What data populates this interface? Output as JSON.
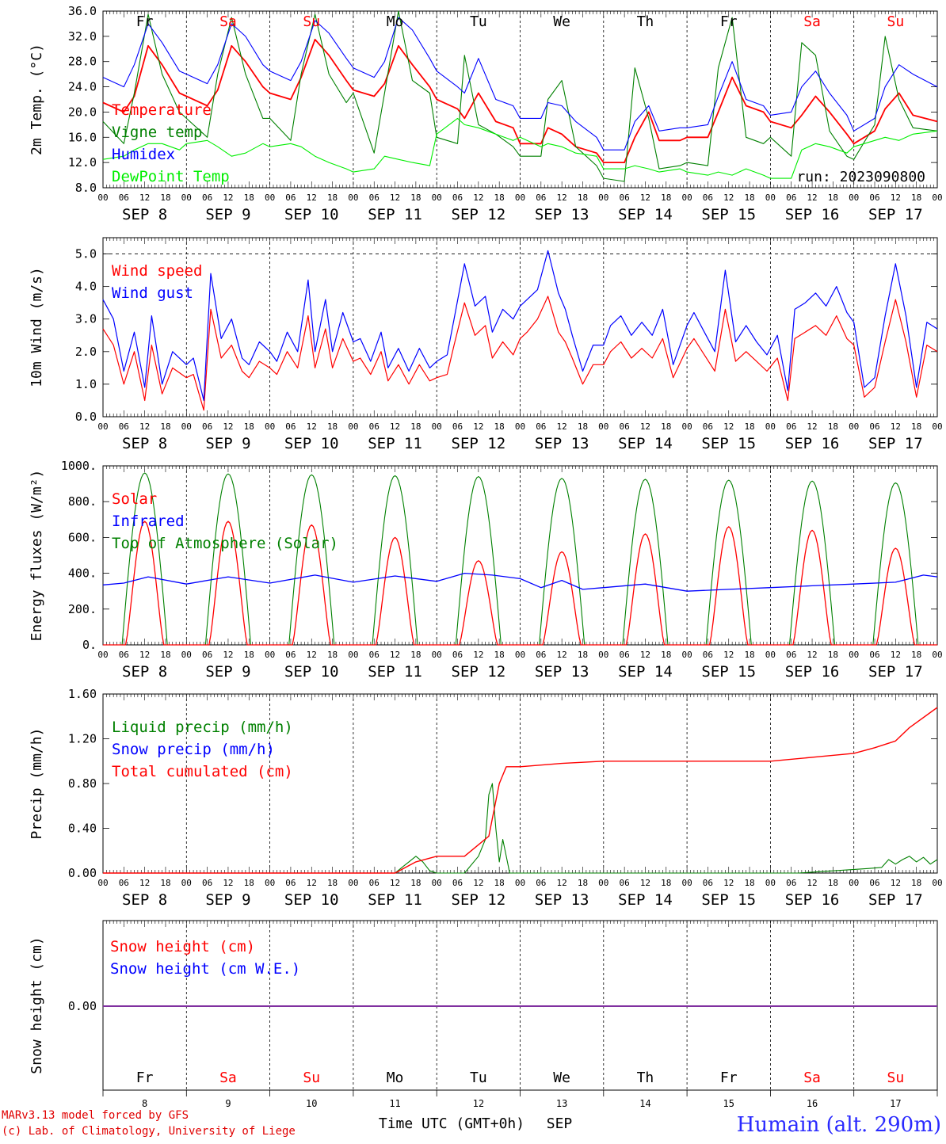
{
  "chart_data": [
    {
      "type": "line",
      "ylabel": "2m Temp. (°C)",
      "ylim": [
        8,
        36
      ],
      "yticks": [
        "8.0",
        "12.0",
        "16.0",
        "20.0",
        "24.0",
        "28.0",
        "32.0",
        "36.0"
      ],
      "run_label": "run: 2023090800",
      "x_hours": [
        0,
        6,
        9,
        13,
        17,
        22,
        24,
        30,
        33,
        37,
        41,
        46,
        48,
        54,
        57,
        61,
        65,
        70,
        72,
        78,
        81,
        85,
        89,
        94,
        96,
        102,
        104,
        108,
        113,
        118,
        120,
        126,
        128,
        132,
        136,
        142,
        144,
        150,
        153,
        157,
        160,
        166,
        168,
        174,
        177,
        181,
        185,
        190,
        192,
        198,
        201,
        205,
        209,
        214,
        216,
        222,
        225,
        229,
        233,
        240
      ],
      "series": [
        {
          "name": "Temperature",
          "color": "#ff0000",
          "values": [
            21.5,
            20.0,
            22.5,
            30.5,
            27.5,
            23.0,
            22.5,
            21.0,
            23.5,
            30.5,
            28.0,
            24.0,
            23.0,
            22.0,
            25.5,
            31.5,
            29.0,
            25.0,
            23.5,
            22.5,
            24.5,
            30.5,
            27.5,
            24.0,
            22.0,
            20.5,
            19.0,
            23.0,
            18.5,
            17.5,
            15.0,
            15.0,
            17.5,
            16.5,
            14.5,
            13.5,
            12.0,
            12.0,
            16.0,
            20.0,
            15.5,
            15.5,
            16.0,
            16.0,
            20.0,
            25.5,
            21.0,
            20.0,
            18.5,
            17.5,
            19.5,
            22.5,
            20.0,
            16.5,
            15.0,
            17.0,
            20.5,
            23.0,
            19.5,
            18.5
          ]
        },
        {
          "name": "Vigne temp",
          "color": "#008000",
          "values": [
            18.5,
            15.0,
            23.0,
            35.5,
            26.0,
            20.0,
            19.0,
            16.0,
            26.0,
            35.0,
            26.0,
            19.0,
            19.0,
            15.5,
            26.0,
            35.5,
            26.0,
            21.5,
            23.0,
            13.5,
            23.0,
            36.0,
            25.0,
            23.0,
            16.0,
            15.0,
            29.0,
            18.0,
            16.5,
            14.5,
            13.0,
            13.0,
            22.0,
            25.0,
            14.5,
            11.5,
            9.5,
            9.0,
            27.0,
            19.0,
            11.0,
            11.5,
            12.0,
            11.5,
            27.0,
            35.0,
            16.0,
            15.0,
            16.0,
            13.0,
            31.0,
            29.0,
            17.0,
            13.0,
            12.5,
            18.0,
            32.0,
            22.0,
            17.5,
            17.0
          ]
        },
        {
          "name": "Humidex",
          "color": "#0000ff",
          "values": [
            25.5,
            24.0,
            27.5,
            34.0,
            31.0,
            26.5,
            26.0,
            24.5,
            27.5,
            34.0,
            32.0,
            27.5,
            26.5,
            25.0,
            28.0,
            34.5,
            32.5,
            28.5,
            27.0,
            25.5,
            28.0,
            35.0,
            33.0,
            28.5,
            26.5,
            24.0,
            23.0,
            28.5,
            22.0,
            21.0,
            19.0,
            19.0,
            21.5,
            21.0,
            18.5,
            16.0,
            14.0,
            14.0,
            18.5,
            21.0,
            17.0,
            17.5,
            17.5,
            18.0,
            22.5,
            28.0,
            22.0,
            21.0,
            19.5,
            20.0,
            24.0,
            26.5,
            23.0,
            19.5,
            17.0,
            19.0,
            24.0,
            27.5,
            26.0,
            24.0
          ]
        },
        {
          "name": "DewPoint Temp",
          "color": "#00ee00",
          "values": [
            12.5,
            13.0,
            14.0,
            15.0,
            15.0,
            14.0,
            15.0,
            15.5,
            14.5,
            13.0,
            13.5,
            15.0,
            14.5,
            15.0,
            14.5,
            13.0,
            12.0,
            11.0,
            10.5,
            11.0,
            13.0,
            12.5,
            12.0,
            11.5,
            16.5,
            19.0,
            18.0,
            17.5,
            16.5,
            15.5,
            16.0,
            14.5,
            15.0,
            14.5,
            13.5,
            13.0,
            11.0,
            11.0,
            11.5,
            11.0,
            10.5,
            11.0,
            10.5,
            10.0,
            10.5,
            10.0,
            11.0,
            10.0,
            9.5,
            9.5,
            14.0,
            15.0,
            14.5,
            13.5,
            14.5,
            15.5,
            16.0,
            15.5,
            16.5,
            17.0
          ]
        }
      ]
    },
    {
      "type": "line",
      "ylabel": "10m Wind (m/s)",
      "ylim": [
        0,
        5.5
      ],
      "yticks": [
        "0.0",
        "1.0",
        "2.0",
        "3.0",
        "4.0",
        "5.0"
      ],
      "x_hours": [
        0,
        3,
        6,
        9,
        12,
        14,
        17,
        20,
        24,
        26,
        29,
        31,
        34,
        37,
        40,
        42,
        45,
        48,
        50,
        53,
        56,
        59,
        61,
        64,
        66,
        69,
        72,
        74,
        77,
        80,
        82,
        85,
        88,
        91,
        94,
        96,
        99,
        101,
        104,
        107,
        110,
        112,
        115,
        118,
        120,
        122,
        125,
        128,
        131,
        133,
        135,
        138,
        141,
        144,
        146,
        149,
        152,
        155,
        158,
        161,
        164,
        168,
        170,
        173,
        176,
        179,
        182,
        185,
        188,
        191,
        194,
        197,
        199,
        202,
        205,
        208,
        211,
        214,
        216,
        219,
        222,
        225,
        228,
        231,
        234,
        237,
        240
      ],
      "series": [
        {
          "name": "Wind speed",
          "color": "#ff0000",
          "values": [
            2.7,
            2.2,
            1.0,
            2.0,
            0.5,
            2.2,
            0.7,
            1.5,
            1.2,
            1.3,
            0.2,
            3.3,
            1.8,
            2.2,
            1.4,
            1.2,
            1.7,
            1.5,
            1.3,
            2.0,
            1.5,
            3.1,
            1.5,
            2.7,
            1.5,
            2.4,
            1.7,
            1.8,
            1.3,
            2.0,
            1.1,
            1.6,
            1.0,
            1.6,
            1.1,
            1.2,
            1.3,
            2.2,
            3.5,
            2.5,
            2.8,
            1.8,
            2.3,
            1.9,
            2.4,
            2.6,
            3.0,
            3.7,
            2.6,
            2.3,
            1.8,
            1.0,
            1.6,
            1.6,
            2.0,
            2.3,
            1.8,
            2.1,
            1.8,
            2.4,
            1.2,
            2.1,
            2.4,
            1.9,
            1.4,
            3.3,
            1.7,
            2.0,
            1.7,
            1.4,
            1.8,
            0.5,
            2.4,
            2.6,
            2.8,
            2.5,
            3.1,
            2.4,
            2.2,
            0.6,
            0.9,
            2.3,
            3.6,
            2.3,
            0.6,
            2.2,
            2.0
          ]
        },
        {
          "name": "Wind gust",
          "color": "#0000ff",
          "values": [
            3.6,
            3.0,
            1.4,
            2.6,
            0.9,
            3.1,
            1.0,
            2.0,
            1.6,
            1.8,
            0.5,
            4.4,
            2.4,
            3.0,
            1.8,
            1.6,
            2.3,
            2.0,
            1.7,
            2.6,
            2.0,
            4.2,
            2.0,
            3.6,
            2.0,
            3.2,
            2.3,
            2.4,
            1.7,
            2.6,
            1.5,
            2.1,
            1.4,
            2.1,
            1.5,
            1.7,
            1.9,
            3.0,
            4.7,
            3.4,
            3.7,
            2.6,
            3.3,
            3.0,
            3.4,
            3.6,
            3.9,
            5.1,
            3.8,
            3.3,
            2.5,
            1.4,
            2.2,
            2.2,
            2.8,
            3.1,
            2.5,
            2.9,
            2.5,
            3.3,
            1.6,
            2.8,
            3.2,
            2.6,
            2.0,
            4.5,
            2.3,
            2.8,
            2.3,
            1.9,
            2.5,
            0.8,
            3.3,
            3.5,
            3.8,
            3.4,
            4.0,
            3.2,
            2.9,
            0.9,
            1.2,
            3.1,
            4.7,
            3.1,
            0.9,
            2.9,
            2.7
          ]
        }
      ]
    },
    {
      "type": "line",
      "ylabel": "Energy fluxes (W/m²)",
      "ylim": [
        0,
        1000
      ],
      "yticks": [
        "0.",
        "200.",
        "400.",
        "600.",
        "800.",
        "1000."
      ],
      "solar_peaks": [
        690,
        690,
        670,
        600,
        470,
        520,
        620,
        660,
        640,
        540
      ],
      "toa_peaks": [
        960,
        955,
        950,
        945,
        940,
        930,
        925,
        920,
        915,
        905
      ],
      "infrared_hours": [
        0,
        6,
        13,
        24,
        36,
        48,
        61,
        72,
        84,
        96,
        104,
        112,
        120,
        126,
        132,
        138,
        144,
        156,
        168,
        180,
        192,
        204,
        216,
        228,
        236,
        240
      ],
      "series": [
        {
          "name": "Solar",
          "color": "#ff0000"
        },
        {
          "name": "Infrared",
          "color": "#0000ff",
          "values": [
            335,
            345,
            380,
            340,
            380,
            345,
            390,
            350,
            385,
            355,
            400,
            390,
            370,
            320,
            360,
            310,
            320,
            340,
            300,
            310,
            320,
            330,
            340,
            350,
            390,
            380
          ]
        },
        {
          "name": "Top of Atmosphere (Solar)",
          "color": "#008000"
        }
      ]
    },
    {
      "type": "line",
      "ylabel": "Precip (mm/h)",
      "ylim": [
        0,
        1.6
      ],
      "yticks": [
        "0.00",
        "0.40",
        "0.80",
        "1.20",
        "1.60"
      ],
      "cumulated_hours": [
        0,
        84,
        90,
        96,
        104,
        111,
        114,
        116,
        120,
        132,
        144,
        156,
        168,
        192,
        206,
        216,
        222,
        228,
        232,
        240
      ],
      "series": [
        {
          "name": "Liquid precip (mm/h)",
          "color": "#008000",
          "hours": [
            0,
            84,
            86,
            88,
            90,
            92,
            94,
            96,
            104,
            108,
            110,
            111,
            112,
            113,
            114,
            115,
            116,
            117,
            118,
            120,
            200,
            210,
            220,
            224,
            226,
            228,
            230,
            232,
            234,
            236,
            238,
            240
          ],
          "values": [
            0,
            0,
            0.05,
            0.1,
            0.15,
            0.1,
            0.02,
            0,
            0,
            0.15,
            0.3,
            0.7,
            0.8,
            0.4,
            0.1,
            0.3,
            0.15,
            0,
            0,
            0,
            0,
            0.02,
            0.04,
            0.05,
            0.12,
            0.08,
            0.12,
            0.15,
            0.1,
            0.14,
            0.08,
            0.12
          ]
        },
        {
          "name": "Snow precip (mm/h)",
          "color": "#0000ff"
        },
        {
          "name": "Total cumulated (cm)",
          "color": "#ff0000",
          "values": [
            0,
            0,
            0.1,
            0.15,
            0.15,
            0.33,
            0.8,
            0.95,
            0.95,
            0.98,
            1.0,
            1.0,
            1.0,
            1.0,
            1.04,
            1.07,
            1.12,
            1.18,
            1.3,
            1.48
          ]
        }
      ]
    },
    {
      "type": "line",
      "ylabel": "Snow height (cm)",
      "ytick": "0.00",
      "series": [
        {
          "name": "Snow height (cm)",
          "color": "#ff0000"
        },
        {
          "name": "Snow height (cm W.E.)",
          "color": "#0000ff"
        }
      ],
      "line_color": "#8030a0"
    }
  ],
  "hour_labels": [
    "00",
    "06",
    "12",
    "18"
  ],
  "dates": [
    "SEP  8",
    "SEP  9",
    "SEP 10",
    "SEP 11",
    "SEP 12",
    "SEP 13",
    "SEP 14",
    "SEP 15",
    "SEP 16",
    "SEP 17"
  ],
  "days": [
    {
      "label": "Fr",
      "color": "#000000"
    },
    {
      "label": "Sa",
      "color": "#ff0000"
    },
    {
      "label": "Su",
      "color": "#ff0000"
    },
    {
      "label": "Mo",
      "color": "#000000"
    },
    {
      "label": "Tu",
      "color": "#000000"
    },
    {
      "label": "We",
      "color": "#000000"
    },
    {
      "label": "Th",
      "color": "#000000"
    },
    {
      "label": "Fr",
      "color": "#000000"
    },
    {
      "label": "Sa",
      "color": "#ff0000"
    },
    {
      "label": "Su",
      "color": "#ff0000"
    }
  ],
  "day_numbers": [
    "8",
    "9",
    "10",
    "11",
    "12",
    "13",
    "14",
    "15",
    "16",
    "17"
  ],
  "footer": {
    "model": "MARv3.13 model forced by GFS",
    "copyright": "(c) Lab. of Climatology, University of Liege",
    "xtitle": "Time UTC (GMT+0h)",
    "month": "SEP",
    "station": "Humain (alt. 290m)"
  }
}
